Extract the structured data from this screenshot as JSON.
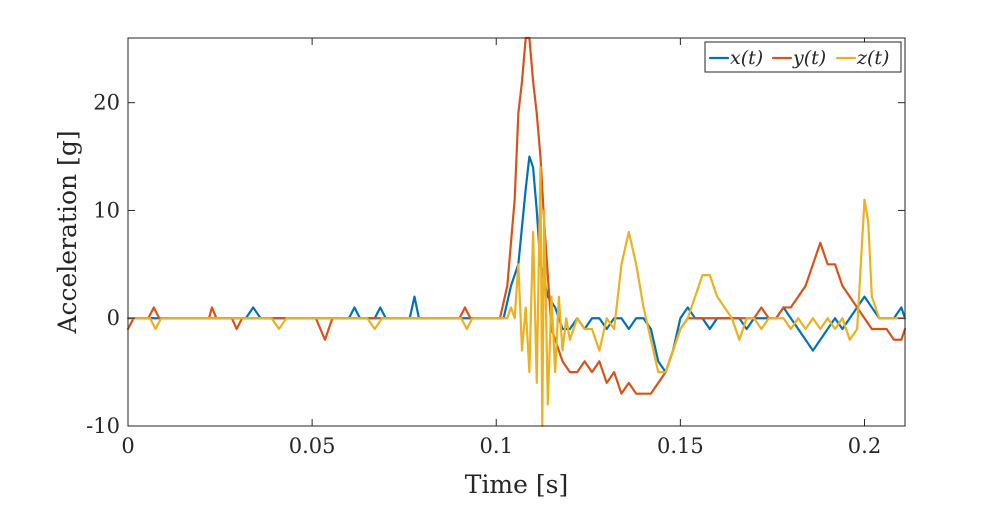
{
  "chart_data": {
    "type": "line",
    "xlabel": "Time [s]",
    "ylabel": "Acceleration [g]",
    "xlim": [
      0,
      0.211
    ],
    "ylim": [
      -10,
      26
    ],
    "x_ticks": [
      0,
      0.05,
      0.1,
      0.15,
      0.2
    ],
    "x_tick_labels": [
      "0",
      "0.05",
      "0.1",
      "0.15",
      "0.2"
    ],
    "y_ticks": [
      -10,
      0,
      10,
      20
    ],
    "y_tick_labels": [
      "-10",
      "0",
      "10",
      "20"
    ],
    "grid": false,
    "legend_position": "top-right",
    "series": [
      {
        "name": "x(t)",
        "color": "#0072BD",
        "x": [
          0,
          0.032,
          0.034,
          0.036,
          0.06,
          0.0615,
          0.063,
          0.067,
          0.0685,
          0.07,
          0.0765,
          0.0778,
          0.079,
          0.102,
          0.104,
          0.106,
          0.108,
          0.109,
          0.11,
          0.111,
          0.112,
          0.114,
          0.116,
          0.118,
          0.12,
          0.122,
          0.124,
          0.126,
          0.128,
          0.13,
          0.132,
          0.134,
          0.136,
          0.138,
          0.14,
          0.142,
          0.144,
          0.146,
          0.148,
          0.15,
          0.152,
          0.154,
          0.156,
          0.158,
          0.16,
          0.162,
          0.164,
          0.166,
          0.168,
          0.17,
          0.172,
          0.174,
          0.176,
          0.178,
          0.18,
          0.182,
          0.184,
          0.186,
          0.188,
          0.19,
          0.192,
          0.194,
          0.196,
          0.198,
          0.2,
          0.202,
          0.204,
          0.206,
          0.208,
          0.21,
          0.211
        ],
        "values": [
          0,
          0,
          1,
          0,
          0,
          1,
          0,
          0,
          1,
          0,
          0,
          2,
          0,
          0,
          3,
          5,
          12,
          15,
          14,
          10,
          5,
          2,
          1,
          -1,
          -1,
          0,
          -1,
          0,
          0,
          -1,
          0,
          0,
          -1,
          0,
          0,
          -1,
          -4,
          -5,
          -3,
          0,
          1,
          0,
          0,
          -1,
          0,
          0,
          0,
          0,
          -1,
          0,
          0,
          0,
          0,
          1,
          0,
          -1,
          -2,
          -3,
          -2,
          -1,
          0,
          -1,
          0,
          1,
          2,
          1,
          0,
          0,
          0,
          1,
          0
        ]
      },
      {
        "name": "y(t)",
        "color": "#D95319",
        "x": [
          0,
          0.0015,
          0.003,
          0.0055,
          0.007,
          0.0085,
          0.022,
          0.0228,
          0.024,
          0.0282,
          0.0295,
          0.031,
          0.051,
          0.0535,
          0.0555,
          0.09,
          0.0915,
          0.093,
          0.101,
          0.103,
          0.105,
          0.106,
          0.107,
          0.108,
          0.109,
          0.11,
          0.111,
          0.112,
          0.113,
          0.114,
          0.115,
          0.116,
          0.118,
          0.12,
          0.122,
          0.124,
          0.126,
          0.128,
          0.13,
          0.132,
          0.134,
          0.136,
          0.138,
          0.14,
          0.142,
          0.144,
          0.146,
          0.148,
          0.15,
          0.152,
          0.154,
          0.156,
          0.158,
          0.16,
          0.162,
          0.164,
          0.166,
          0.168,
          0.17,
          0.172,
          0.174,
          0.176,
          0.178,
          0.18,
          0.182,
          0.184,
          0.186,
          0.188,
          0.19,
          0.192,
          0.194,
          0.196,
          0.198,
          0.2,
          0.202,
          0.204,
          0.206,
          0.208,
          0.21,
          0.211
        ],
        "values": [
          -1,
          0,
          0,
          0,
          1,
          0,
          0,
          1,
          0,
          0,
          -1,
          0,
          0,
          -2,
          0,
          0,
          1,
          0,
          0,
          3,
          11,
          19,
          22,
          26,
          26,
          22,
          19,
          15,
          9,
          4,
          -1,
          -2,
          -4,
          -5,
          -5,
          -4,
          -5,
          -4,
          -6,
          -5,
          -7,
          -6,
          -7,
          -7,
          -7,
          -6,
          -5,
          -3,
          -1,
          0,
          0,
          0,
          0,
          0,
          0,
          0,
          0,
          0,
          0,
          1,
          0,
          0,
          1,
          1,
          2,
          3,
          5,
          7,
          5,
          5,
          3,
          2,
          1,
          0,
          -1,
          -1,
          -1,
          -2,
          -2,
          -1
        ]
      },
      {
        "name": "z(t)",
        "color": "#EDB120",
        "x": [
          0,
          0.006,
          0.0075,
          0.009,
          0.039,
          0.041,
          0.043,
          0.065,
          0.067,
          0.069,
          0.0905,
          0.092,
          0.0935,
          0.1,
          0.102,
          0.103,
          0.104,
          0.105,
          0.106,
          0.107,
          0.108,
          0.109,
          0.11,
          0.111,
          0.112,
          0.1125,
          0.113,
          0.114,
          0.115,
          0.116,
          0.117,
          0.118,
          0.119,
          0.12,
          0.122,
          0.124,
          0.126,
          0.128,
          0.13,
          0.132,
          0.134,
          0.136,
          0.138,
          0.14,
          0.142,
          0.144,
          0.146,
          0.148,
          0.15,
          0.152,
          0.154,
          0.156,
          0.158,
          0.16,
          0.162,
          0.164,
          0.166,
          0.168,
          0.17,
          0.172,
          0.174,
          0.176,
          0.178,
          0.18,
          0.182,
          0.184,
          0.186,
          0.188,
          0.19,
          0.192,
          0.194,
          0.196,
          0.198,
          0.199,
          0.2,
          0.201,
          0.202,
          0.204,
          0.206,
          0.208,
          0.211
        ],
        "values": [
          0,
          0,
          -1,
          0,
          0,
          -1,
          0,
          0,
          -1,
          0,
          0,
          -1,
          0,
          0,
          0,
          0,
          1,
          0,
          5,
          -3,
          1,
          -5,
          8,
          -6,
          14,
          -10,
          10,
          -8,
          2,
          -5,
          2,
          -3,
          0,
          -2,
          0,
          -1,
          -1,
          -3,
          0,
          -1,
          5,
          8,
          5,
          1,
          -2,
          -5,
          -5,
          -3,
          -1,
          0,
          2,
          4,
          4,
          2,
          1,
          0,
          -2,
          0,
          0,
          -1,
          0,
          0,
          0,
          -1,
          0,
          -1,
          0,
          -1,
          0,
          -1,
          0,
          -2,
          -1,
          5,
          11,
          9,
          2,
          0,
          0,
          0,
          0
        ]
      }
    ]
  }
}
